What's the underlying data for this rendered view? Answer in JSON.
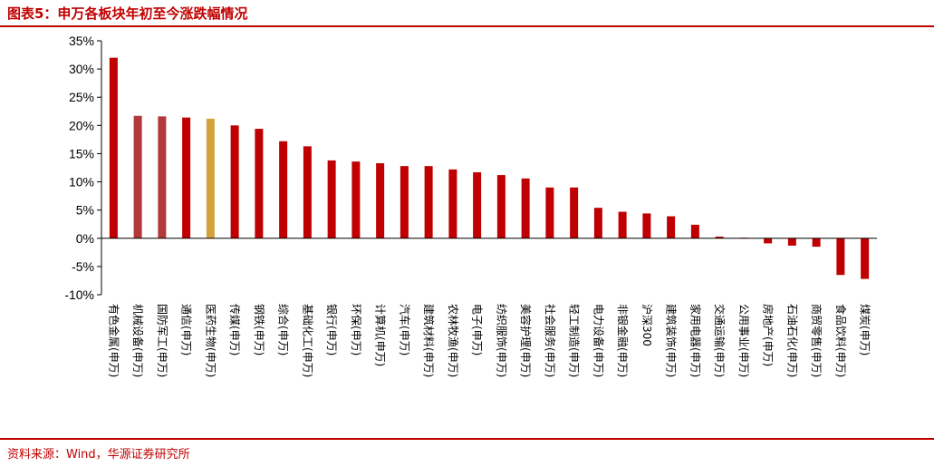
{
  "header": {
    "title": "图表5：申万各板块年初至今涨跌幅情况"
  },
  "footer": {
    "source": "资料来源：Wind，华源证券研究所"
  },
  "colors": {
    "default": "#c00000",
    "highlight_brown": "#b3383a",
    "highlight_gold": "#d4a23c",
    "rule": "#c00000"
  },
  "chart_data": {
    "type": "bar",
    "title": "",
    "xlabel": "",
    "ylabel": "",
    "ylim": [
      -10,
      35
    ],
    "yticks": [
      -10,
      -5,
      0,
      5,
      10,
      15,
      20,
      25,
      30,
      35
    ],
    "ytick_labels": [
      "-10%",
      "-5%",
      "0%",
      "5%",
      "10%",
      "15%",
      "20%",
      "25%",
      "30%",
      "35%"
    ],
    "categories": [
      "有色金属(申万)",
      "机械设备(申万)",
      "国防军工(申万)",
      "通信(申万)",
      "医药生物(申万)",
      "传媒(申万)",
      "钢铁(申万)",
      "综合(申万)",
      "基础化工(申万)",
      "银行(申万)",
      "环保(申万)",
      "计算机(申万)",
      "汽车(申万)",
      "建筑材料(申万)",
      "农林牧渔(申万)",
      "电子(申万)",
      "纺织服饰(申万)",
      "美容护理(申万)",
      "社会服务(申万)",
      "轻工制造(申万)",
      "电力设备(申万)",
      "非银金融(申万)",
      "沪深300",
      "建筑装饰(申万)",
      "家用电器(申万)",
      "交通运输(申万)",
      "公用事业(申万)",
      "房地产(申万)",
      "石油石化(申万)",
      "商贸零售(申万)",
      "食品饮料(申万)",
      "煤炭(申万)"
    ],
    "values": [
      32.0,
      21.7,
      21.6,
      21.4,
      21.2,
      20.0,
      19.4,
      17.2,
      16.3,
      13.8,
      13.6,
      13.3,
      12.8,
      12.8,
      12.2,
      11.7,
      11.2,
      10.6,
      9.0,
      9.0,
      5.4,
      4.7,
      4.4,
      3.9,
      2.4,
      0.3,
      0.1,
      -0.9,
      -1.3,
      -1.5,
      -6.5,
      -7.2
    ],
    "bar_colors": [
      "#c00000",
      "#b3383a",
      "#b3383a",
      "#c00000",
      "#d4a23c",
      "#c00000",
      "#c00000",
      "#c00000",
      "#c00000",
      "#c00000",
      "#c00000",
      "#c00000",
      "#c00000",
      "#c00000",
      "#c00000",
      "#c00000",
      "#c00000",
      "#c00000",
      "#c00000",
      "#c00000",
      "#c00000",
      "#c00000",
      "#c00000",
      "#c00000",
      "#c00000",
      "#c00000",
      "#c00000",
      "#c00000",
      "#c00000",
      "#c00000",
      "#c00000",
      "#c00000"
    ],
    "grid": false,
    "legend": "none"
  }
}
